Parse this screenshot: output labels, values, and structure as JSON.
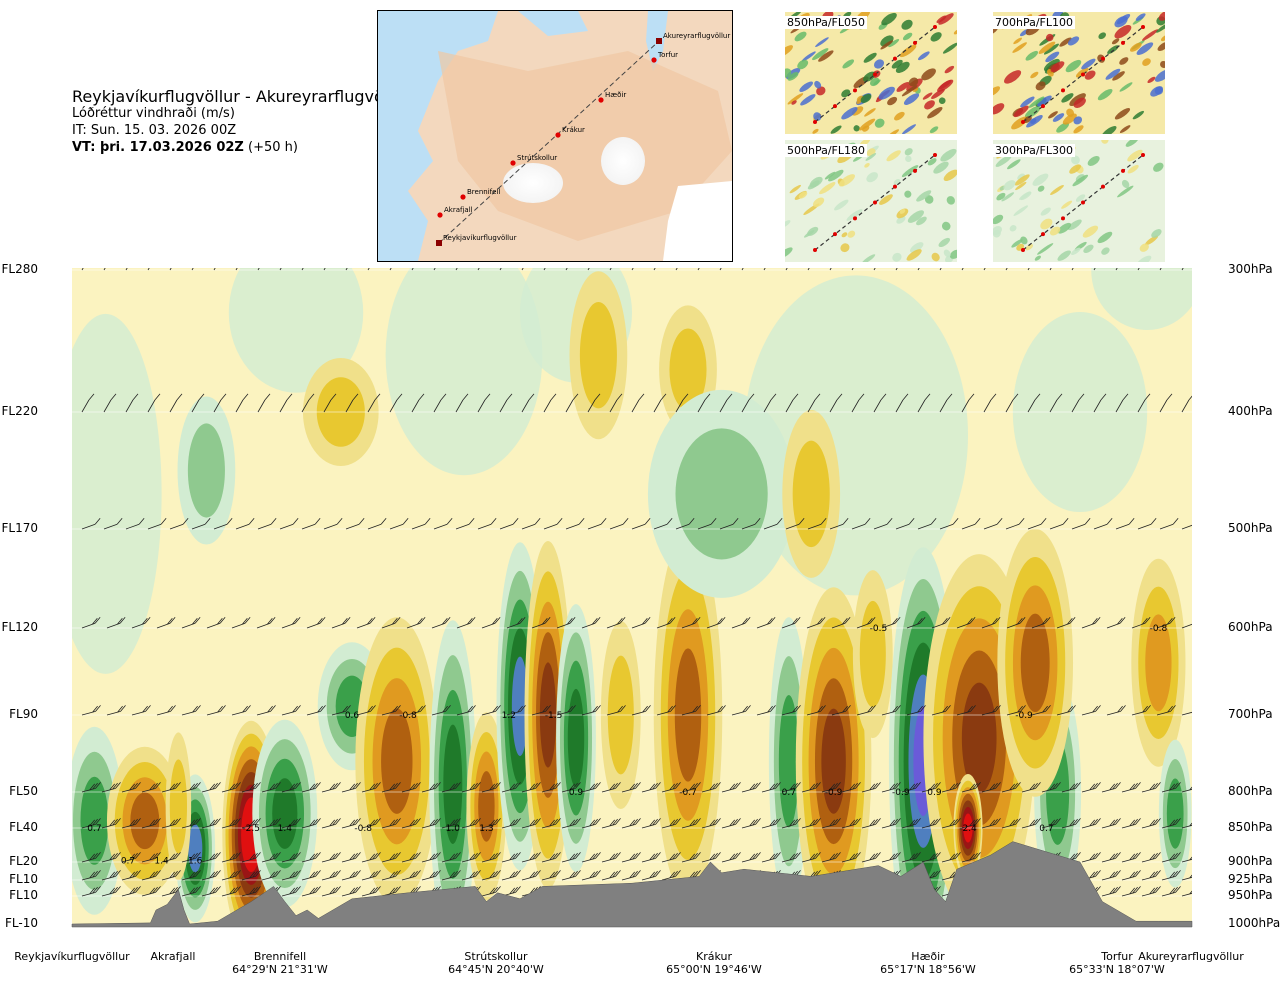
{
  "header": {
    "title": "Reykjavíkurflugvöllur - Akureyrarflugvöllur",
    "subtitle": "Lóðréttur vindhraði (m/s)",
    "issue_time": "IT: Sun. 15. 03. 2026 00Z",
    "valid_time_bold": "VT: þri. 17.03.2026 02Z",
    "valid_time_offset": "(+50 h)"
  },
  "route_map": {
    "points": [
      "Reykjavíkurflugvöllur",
      "Akrafjall",
      "Brennifell",
      "Strútskollur",
      "Krákur",
      "Hæðir",
      "Torfur",
      "Akureyrarflugvöllur"
    ]
  },
  "mini_maps": [
    {
      "label": "850hPa/FL050"
    },
    {
      "label": "700hPa/FL100"
    },
    {
      "label": "500hPa/FL180"
    },
    {
      "label": "300hPa/FL300"
    }
  ],
  "chart_data": {
    "type": "heatmap",
    "title": "Reykjavíkurflugvöllur - Akureyrarflugvöllur",
    "variable": "Lóðréttur vindhraði (m/s)",
    "left_axis_flight_levels": [
      "FL280",
      "FL220",
      "FL170",
      "FL120",
      "FL90",
      "FL50",
      "FL40",
      "FL20",
      "FL10",
      "FL10",
      "FL-10"
    ],
    "right_axis_pressure_levels": [
      "300hPa",
      "400hPa",
      "500hPa",
      "600hPa",
      "700hPa",
      "800hPa",
      "850hPa",
      "900hPa",
      "925hPa",
      "950hPa",
      "1000hPa"
    ],
    "pressure_values_hpa": [
      300,
      400,
      500,
      600,
      700,
      800,
      850,
      900,
      925,
      950,
      1000
    ],
    "x_waypoints": [
      {
        "name": "Reykjavíkurflugvöllur",
        "coord": "",
        "dist": 0.0
      },
      {
        "name": "Akrafjall",
        "coord": "",
        "dist": 0.1
      },
      {
        "name": "Brennifell",
        "coord": "64°29'N 21°31'W",
        "dist": 0.19
      },
      {
        "name": "Strútskollur",
        "coord": "64°45'N 20°40'W",
        "dist": 0.38
      },
      {
        "name": "Krákur",
        "coord": "65°00'N 19°46'W",
        "dist": 0.57
      },
      {
        "name": "Hæðir",
        "coord": "65°17'N 18°56'W",
        "dist": 0.76
      },
      {
        "name": "Torfur",
        "coord": "65°33'N 18°07'W",
        "dist": 0.92
      },
      {
        "name": "Akureyrarflugvöllur",
        "coord": "",
        "dist": 1.0
      }
    ],
    "value_labels": [
      {
        "text": "0.7",
        "x": 0.02,
        "p": 850
      },
      {
        "text": "0.7",
        "x": 0.05,
        "p": 898
      },
      {
        "text": "1.4",
        "x": 0.08,
        "p": 898
      },
      {
        "text": "1.6",
        "x": 0.11,
        "p": 898
      },
      {
        "text": "-2.5",
        "x": 0.16,
        "p": 850
      },
      {
        "text": "1.4",
        "x": 0.19,
        "p": 850
      },
      {
        "text": "0.6",
        "x": 0.25,
        "p": 700
      },
      {
        "text": "-0.8",
        "x": 0.3,
        "p": 700
      },
      {
        "text": "-0.8",
        "x": 0.26,
        "p": 850
      },
      {
        "text": "1.0",
        "x": 0.34,
        "p": 850
      },
      {
        "text": "1.3",
        "x": 0.37,
        "p": 850
      },
      {
        "text": "1.2",
        "x": 0.39,
        "p": 700
      },
      {
        "text": "-1.5",
        "x": 0.43,
        "p": 700
      },
      {
        "text": "0.9",
        "x": 0.45,
        "p": 800
      },
      {
        "text": "-0.7",
        "x": 0.55,
        "p": 800
      },
      {
        "text": "0.7",
        "x": 0.64,
        "p": 800
      },
      {
        "text": "-0.9",
        "x": 0.68,
        "p": 800
      },
      {
        "text": "-0.5",
        "x": 0.72,
        "p": 600
      },
      {
        "text": "-0.9",
        "x": 0.74,
        "p": 800
      },
      {
        "text": "0.9",
        "x": 0.77,
        "p": 800
      },
      {
        "text": "-2.4",
        "x": 0.8,
        "p": 850
      },
      {
        "text": "-0.9",
        "x": 0.85,
        "p": 700
      },
      {
        "text": "0.7",
        "x": 0.87,
        "p": 850
      },
      {
        "text": "-0.8",
        "x": 0.97,
        "p": 600
      }
    ],
    "color_scale": [
      "#1f0a8a",
      "#6a5bd8",
      "#4f7fbf",
      "#1f7a2a",
      "#3aa04a",
      "#8fc98f",
      "#d2ecd2",
      "#fbf3c0",
      "#f0e08a",
      "#e8c830",
      "#e09a20",
      "#b06010",
      "#8a3a10",
      "#9a1515",
      "#e01010"
    ],
    "columns": [
      {
        "x": 0.02,
        "p": 840,
        "v": 1.0,
        "w": 0.015,
        "h": 90
      },
      {
        "x": 0.065,
        "p": 840,
        "v": -1.4,
        "w": 0.02,
        "h": 70
      },
      {
        "x": 0.11,
        "p": 880,
        "v": 1.6,
        "w": 0.01,
        "h": 70
      },
      {
        "x": 0.095,
        "p": 820,
        "v": -0.6,
        "w": 0.006,
        "h": 70
      },
      {
        "x": 0.16,
        "p": 860,
        "v": -2.5,
        "w": 0.015,
        "h": 110
      },
      {
        "x": 0.19,
        "p": 830,
        "v": 1.4,
        "w": 0.017,
        "h": 90
      },
      {
        "x": 0.25,
        "p": 690,
        "v": 0.9,
        "w": 0.018,
        "h": 60
      },
      {
        "x": 0.29,
        "p": 760,
        "v": -1.3,
        "w": 0.022,
        "h": 140
      },
      {
        "x": 0.34,
        "p": 790,
        "v": 1.3,
        "w": 0.012,
        "h": 160
      },
      {
        "x": 0.37,
        "p": 820,
        "v": -1.2,
        "w": 0.01,
        "h": 90
      },
      {
        "x": 0.4,
        "p": 690,
        "v": 1.5,
        "w": 0.012,
        "h": 160
      },
      {
        "x": 0.425,
        "p": 700,
        "v": -1.6,
        "w": 0.012,
        "h": 170
      },
      {
        "x": 0.45,
        "p": 730,
        "v": 1.2,
        "w": 0.01,
        "h": 130
      },
      {
        "x": 0.49,
        "p": 700,
        "v": -0.8,
        "w": 0.01,
        "h": 90
      },
      {
        "x": 0.55,
        "p": 700,
        "v": -1.3,
        "w": 0.018,
        "h": 180
      },
      {
        "x": 0.64,
        "p": 760,
        "v": 0.9,
        "w": 0.01,
        "h": 140
      },
      {
        "x": 0.68,
        "p": 760,
        "v": -1.5,
        "w": 0.02,
        "h": 170
      },
      {
        "x": 0.715,
        "p": 630,
        "v": -0.7,
        "w": 0.01,
        "h": 80
      },
      {
        "x": 0.76,
        "p": 760,
        "v": 2.0,
        "w": 0.018,
        "h": 210
      },
      {
        "x": 0.81,
        "p": 730,
        "v": -1.8,
        "w": 0.03,
        "h": 180
      },
      {
        "x": 0.8,
        "p": 850,
        "v": -2.4,
        "w": 0.007,
        "h": 50
      },
      {
        "x": 0.88,
        "p": 800,
        "v": 1.0,
        "w": 0.012,
        "h": 110
      },
      {
        "x": 0.86,
        "p": 640,
        "v": -1.3,
        "w": 0.02,
        "h": 130
      },
      {
        "x": 0.97,
        "p": 640,
        "v": -1.1,
        "w": 0.014,
        "h": 100
      },
      {
        "x": 0.985,
        "p": 830,
        "v": 1.0,
        "w": 0.008,
        "h": 70
      },
      {
        "x": 0.24,
        "p": 400,
        "v": -0.5,
        "w": 0.02,
        "h": 50
      },
      {
        "x": 0.47,
        "p": 360,
        "v": -0.6,
        "w": 0.015,
        "h": 80
      },
      {
        "x": 0.55,
        "p": 370,
        "v": -0.5,
        "w": 0.015,
        "h": 60
      },
      {
        "x": 0.12,
        "p": 450,
        "v": 0.6,
        "w": 0.015,
        "h": 70
      },
      {
        "x": 0.58,
        "p": 470,
        "v": 0.5,
        "w": 0.04,
        "h": 100
      },
      {
        "x": 0.66,
        "p": 470,
        "v": -0.5,
        "w": 0.015,
        "h": 80
      }
    ],
    "terrain_hpa": [
      [
        0.0,
        1000
      ],
      [
        0.07,
        998
      ],
      [
        0.075,
        975
      ],
      [
        0.085,
        965
      ],
      [
        0.095,
        940
      ],
      [
        0.1,
        975
      ],
      [
        0.105,
        1000
      ],
      [
        0.13,
        995
      ],
      [
        0.16,
        960
      ],
      [
        0.18,
        935
      ],
      [
        0.19,
        960
      ],
      [
        0.2,
        985
      ],
      [
        0.21,
        975
      ],
      [
        0.22,
        990
      ],
      [
        0.25,
        955
      ],
      [
        0.3,
        945
      ],
      [
        0.36,
        935
      ],
      [
        0.37,
        960
      ],
      [
        0.38,
        945
      ],
      [
        0.4,
        955
      ],
      [
        0.42,
        935
      ],
      [
        0.5,
        930
      ],
      [
        0.56,
        920
      ],
      [
        0.57,
        900
      ],
      [
        0.58,
        915
      ],
      [
        0.6,
        910
      ],
      [
        0.66,
        920
      ],
      [
        0.72,
        905
      ],
      [
        0.74,
        920
      ],
      [
        0.76,
        900
      ],
      [
        0.77,
        940
      ],
      [
        0.78,
        960
      ],
      [
        0.79,
        910
      ],
      [
        0.82,
        890
      ],
      [
        0.84,
        870
      ],
      [
        0.86,
        880
      ],
      [
        0.9,
        900
      ],
      [
        0.92,
        960
      ],
      [
        0.95,
        995
      ],
      [
        0.97,
        995
      ],
      [
        1.0,
        995
      ]
    ],
    "wind_barb_rows_hpa": [
      300,
      400,
      500,
      600,
      700,
      800,
      850,
      900,
      925,
      950
    ]
  }
}
